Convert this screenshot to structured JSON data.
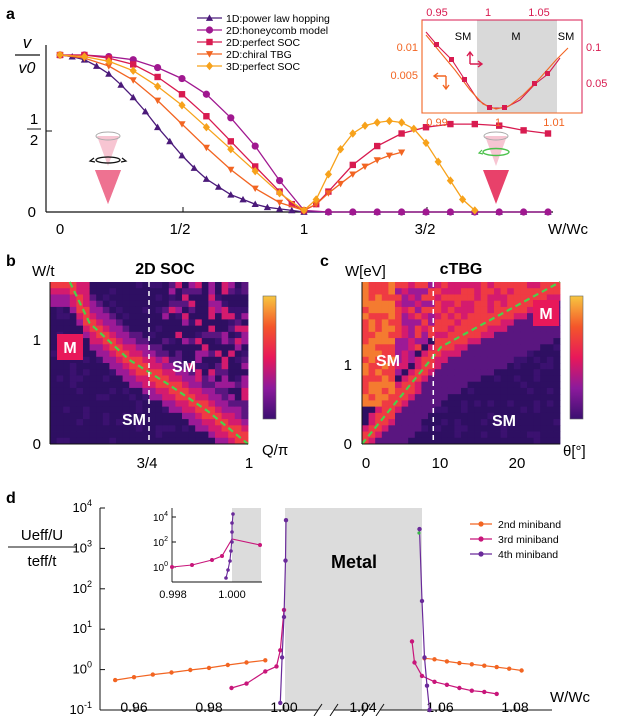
{
  "panels": {
    "a": {
      "label": "a",
      "ylabel_num": "v",
      "ylabel_den": "v0",
      "y_ticks": [
        "0",
        "1/2"
      ],
      "x_ticks": [
        "0",
        "1/2",
        "1",
        "3/2"
      ],
      "xlabel": "W/Wc",
      "legend": [
        {
          "name": "1D:power law hopping",
          "color": "#4b1a7a",
          "marker": "triangle-up"
        },
        {
          "name": "2D:honeycomb model",
          "color": "#a01890",
          "marker": "circle"
        },
        {
          "name": "2D:perfect SOC",
          "color": "#d81b50",
          "marker": "square"
        },
        {
          "name": "2D:chiral TBG",
          "color": "#f26522",
          "marker": "triangle-down"
        },
        {
          "name": "3D:perfect SOC",
          "color": "#f7a21b",
          "marker": "diamond"
        }
      ],
      "inset": {
        "top_ticks": [
          "0.95",
          "1",
          "1.05"
        ],
        "bottom_ticks": [
          "0.99",
          "1",
          "1.01"
        ],
        "left_ticks": [
          "0.01",
          "0.005"
        ],
        "right_ticks": [
          "0.1",
          "0.05"
        ],
        "regions": [
          "SM",
          "M",
          "SM"
        ]
      }
    },
    "b": {
      "label": "b",
      "title": "2D SOC",
      "ylabel": "W/t",
      "xlabel": "Q/π",
      "y_ticks": [
        "0",
        "1"
      ],
      "x_ticks": [
        "3/4",
        "1"
      ],
      "regions": [
        "M",
        "SM",
        "SM"
      ]
    },
    "c": {
      "label": "c",
      "title": "cTBG",
      "ylabel": "W[eV]",
      "xlabel": "θ[°]",
      "y_ticks": [
        "0",
        "1"
      ],
      "x_ticks": [
        "0",
        "10",
        "20"
      ],
      "regions": [
        "M",
        "SM",
        "SM"
      ]
    },
    "d": {
      "label": "d",
      "ylabel_num": "Ueff/U",
      "ylabel_den": "teff/t",
      "xlabel": "W/Wc",
      "metal_label": "Metal",
      "y_ticks": [
        "10^-1",
        "10^0",
        "10^1",
        "10^2",
        "10^3",
        "10^4"
      ],
      "x_ticks": [
        "0.96",
        "0.98",
        "1.00",
        "1.04",
        "1.06",
        "1.08"
      ],
      "legend": [
        {
          "name": "2nd miniband",
          "color": "#f26522"
        },
        {
          "name": "3rd miniband",
          "color": "#c8157a"
        },
        {
          "name": "4th miniband",
          "color": "#6a2a9a"
        }
      ],
      "inset": {
        "y_ticks": [
          "10^0",
          "10^2",
          "10^4"
        ],
        "x_ticks": [
          "0.998",
          "1.000"
        ]
      }
    }
  },
  "chart_data": [
    {
      "type": "line",
      "panel": "a",
      "xlabel": "W/Wc",
      "ylabel": "v/v0",
      "xlim": [
        -0.05,
        2.05
      ],
      "ylim": [
        0,
        1.05
      ],
      "series": [
        {
          "name": "1D:power law hopping",
          "x": [
            0,
            0.05,
            0.1,
            0.15,
            0.2,
            0.25,
            0.3,
            0.35,
            0.4,
            0.45,
            0.5,
            0.55,
            0.6,
            0.65,
            0.7,
            0.75,
            0.8,
            0.85,
            0.9,
            0.95,
            1.0,
            1.1,
            1.2,
            1.3,
            1.4,
            1.5,
            1.6,
            1.7,
            1.8,
            1.9,
            2.0
          ],
          "y": [
            1,
            0.99,
            0.97,
            0.93,
            0.88,
            0.81,
            0.73,
            0.64,
            0.54,
            0.45,
            0.36,
            0.28,
            0.21,
            0.16,
            0.11,
            0.08,
            0.05,
            0.03,
            0.02,
            0.01,
            0,
            0,
            0,
            0,
            0,
            0,
            0,
            0,
            0,
            0,
            0
          ]
        },
        {
          "name": "2D:honeycomb model",
          "x": [
            0,
            0.1,
            0.2,
            0.3,
            0.4,
            0.5,
            0.6,
            0.7,
            0.8,
            0.9,
            1.0,
            1.1,
            1.2,
            1.3,
            1.4,
            1.5,
            1.6,
            1.7,
            1.8,
            1.9,
            2.0
          ],
          "y": [
            1,
            1,
            0.99,
            0.97,
            0.92,
            0.85,
            0.75,
            0.6,
            0.42,
            0.2,
            0.01,
            0,
            0,
            0,
            0,
            0,
            0,
            0,
            0,
            0,
            0
          ]
        },
        {
          "name": "2D:perfect SOC",
          "x": [
            0,
            0.1,
            0.2,
            0.3,
            0.4,
            0.5,
            0.6,
            0.7,
            0.8,
            0.9,
            0.95,
            1.0,
            1.05,
            1.1,
            1.2,
            1.3,
            1.4,
            1.5,
            1.6,
            1.7,
            1.8,
            1.9,
            2.0
          ],
          "y": [
            1,
            1,
            0.98,
            0.94,
            0.86,
            0.75,
            0.61,
            0.45,
            0.29,
            0.13,
            0.05,
            0.01,
            0.05,
            0.13,
            0.3,
            0.42,
            0.5,
            0.54,
            0.56,
            0.56,
            0.55,
            0.52,
            0.5
          ]
        },
        {
          "name": "2D:chiral TBG",
          "x": [
            0,
            0.1,
            0.2,
            0.3,
            0.4,
            0.5,
            0.6,
            0.7,
            0.8,
            0.9,
            1.0,
            1.05,
            1.1,
            1.15,
            1.2,
            1.25,
            1.3,
            1.35,
            1.4
          ],
          "y": [
            1,
            0.98,
            0.93,
            0.84,
            0.71,
            0.56,
            0.41,
            0.27,
            0.15,
            0.06,
            0.01,
            0.05,
            0.12,
            0.18,
            0.24,
            0.29,
            0.33,
            0.36,
            0.38
          ]
        },
        {
          "name": "3D:perfect SOC",
          "x": [
            0,
            0.1,
            0.2,
            0.3,
            0.4,
            0.5,
            0.6,
            0.7,
            0.8,
            0.9,
            1.0,
            1.05,
            1.1,
            1.15,
            1.2,
            1.25,
            1.3,
            1.35,
            1.4,
            1.45,
            1.5,
            1.55,
            1.6,
            1.65,
            1.7
          ],
          "y": [
            1,
            0.99,
            0.96,
            0.9,
            0.8,
            0.68,
            0.54,
            0.4,
            0.26,
            0.12,
            0.01,
            0.08,
            0.24,
            0.4,
            0.5,
            0.55,
            0.57,
            0.58,
            0.57,
            0.53,
            0.44,
            0.32,
            0.2,
            0.08,
            0.01
          ]
        }
      ]
    },
    {
      "type": "heatmap",
      "panel": "b",
      "xlabel": "Q/π",
      "ylabel": "W/t",
      "xlim": [
        0.5,
        1.0
      ],
      "ylim": [
        0,
        1.5
      ],
      "critical_line_x": 0.75,
      "boundary": {
        "x": [
          0.55,
          0.6,
          0.7,
          0.8,
          0.9,
          1.0
        ],
        "y": [
          1.5,
          1.12,
          0.78,
          0.55,
          0.3,
          0.0
        ]
      }
    },
    {
      "type": "heatmap",
      "panel": "c",
      "xlabel": "θ[°]",
      "ylabel": "W[eV]",
      "xlim": [
        0,
        25
      ],
      "ylim": [
        0,
        1.5
      ],
      "critical_line_x": 9,
      "boundary": {
        "x": [
          0,
          5,
          10,
          15,
          20,
          25
        ],
        "y": [
          0,
          0.45,
          0.9,
          1.1,
          1.3,
          1.5
        ]
      }
    },
    {
      "type": "line",
      "panel": "d",
      "xlabel": "W/Wc",
      "ylabel": "Ueff/U / teff/t",
      "y_scale": "log",
      "ylim": [
        0.1,
        10000
      ],
      "series": [
        {
          "name": "2nd miniband",
          "x": [
            0.955,
            0.96,
            0.965,
            0.97,
            0.975,
            0.98,
            0.985,
            0.99,
            0.995,
            1.056,
            1.06,
            1.065,
            1.07,
            1.075,
            1.08,
            1.085,
            1.09,
            1.095
          ],
          "y": [
            0.55,
            0.65,
            0.75,
            0.85,
            0.98,
            1.1,
            1.3,
            1.5,
            1.7,
            1.9,
            1.8,
            1.6,
            1.45,
            1.35,
            1.25,
            1.15,
            1.05,
            0.95
          ]
        },
        {
          "name": "3rd miniband",
          "x": [
            0.986,
            0.99,
            0.995,
            0.998,
            0.999,
            1.0,
            1.051,
            1.052,
            1.055,
            1.06,
            1.065,
            1.07,
            1.075,
            1.08,
            1.085
          ],
          "y": [
            0.35,
            0.45,
            0.9,
            1.2,
            3,
            30,
            5,
            1.5,
            0.7,
            0.5,
            0.42,
            0.35,
            0.3,
            0.28,
            0.25
          ]
        },
        {
          "name": "4th miniband",
          "x": [
            0.999,
            0.9995,
            1.0,
            1.0002,
            1.0004,
            1.054,
            1.055,
            1.056,
            1.057,
            1.058
          ],
          "y": [
            0.15,
            2,
            20,
            500,
            5000,
            3000,
            50,
            2,
            0.4,
            0.1
          ]
        }
      ]
    }
  ]
}
